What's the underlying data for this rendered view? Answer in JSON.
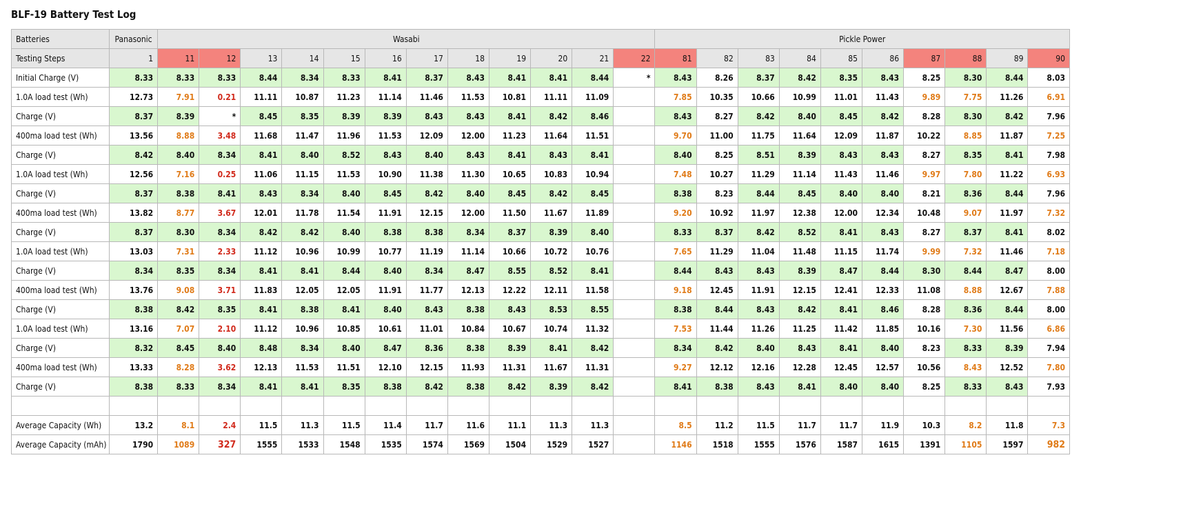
{
  "title": "BLF-19 Battery Test Log",
  "table": {
    "group_header": {
      "label": "Batteries",
      "groups": [
        {
          "name": "Panasonic",
          "span": 1
        },
        {
          "name": "Wasabi",
          "span": 12
        },
        {
          "name": "Pickle Power",
          "span": 10
        }
      ]
    },
    "columns_label": "Testing Steps",
    "columns": [
      "1",
      "11",
      "12",
      "13",
      "14",
      "15",
      "16",
      "17",
      "18",
      "19",
      "20",
      "21",
      "22",
      "81",
      "82",
      "83",
      "84",
      "85",
      "86",
      "87",
      "88",
      "89",
      "90"
    ],
    "flagged": [
      false,
      true,
      true,
      false,
      false,
      false,
      false,
      false,
      false,
      false,
      false,
      false,
      true,
      true,
      false,
      false,
      false,
      false,
      false,
      true,
      true,
      false,
      true
    ],
    "flag_color": "#f4837d",
    "good_color": "#d9f7cf",
    "warn_color": "#e07b18",
    "bad_color": "#d12a1c",
    "rows": [
      {
        "kind": "charge",
        "label": "Initial Charge (V)",
        "values": [
          "8.33",
          "8.33",
          "8.33",
          "8.44",
          "8.34",
          "8.33",
          "8.41",
          "8.37",
          "8.43",
          "8.41",
          "8.41",
          "8.44",
          "*",
          "8.43",
          "8.26",
          "8.37",
          "8.42",
          "8.35",
          "8.43",
          "8.25",
          "8.30",
          "8.44",
          "8.03"
        ]
      },
      {
        "kind": "load",
        "label": "1.0A load test (Wh)",
        "values": [
          "12.73",
          "7.91",
          "0.21",
          "11.11",
          "10.87",
          "11.23",
          "11.14",
          "11.46",
          "11.53",
          "10.81",
          "11.11",
          "11.09",
          null,
          "7.85",
          "10.35",
          "10.66",
          "10.99",
          "11.01",
          "11.43",
          "9.89",
          "7.75",
          "11.26",
          "6.91"
        ]
      },
      {
        "kind": "charge",
        "label": "Charge (V)",
        "values": [
          "8.37",
          "8.39",
          "*",
          "8.45",
          "8.35",
          "8.39",
          "8.39",
          "8.43",
          "8.43",
          "8.41",
          "8.42",
          "8.46",
          null,
          "8.43",
          "8.27",
          "8.42",
          "8.40",
          "8.45",
          "8.42",
          "8.28",
          "8.30",
          "8.42",
          "7.96"
        ]
      },
      {
        "kind": "load",
        "label": "400ma load test (Wh)",
        "values": [
          "13.56",
          "8.88",
          "3.48",
          "11.68",
          "11.47",
          "11.96",
          "11.53",
          "12.09",
          "12.00",
          "11.23",
          "11.64",
          "11.51",
          null,
          "9.70",
          "11.00",
          "11.75",
          "11.64",
          "12.09",
          "11.87",
          "10.22",
          "8.85",
          "11.87",
          "7.25"
        ]
      },
      {
        "kind": "charge",
        "label": "Charge (V)",
        "values": [
          "8.42",
          "8.40",
          "8.34",
          "8.41",
          "8.40",
          "8.52",
          "8.43",
          "8.40",
          "8.43",
          "8.41",
          "8.43",
          "8.41",
          null,
          "8.40",
          "8.25",
          "8.51",
          "8.39",
          "8.43",
          "8.43",
          "8.27",
          "8.35",
          "8.41",
          "7.98"
        ]
      },
      {
        "kind": "load",
        "label": "1.0A load test (Wh)",
        "values": [
          "12.56",
          "7.16",
          "0.25",
          "11.06",
          "11.15",
          "11.53",
          "10.90",
          "11.38",
          "11.30",
          "10.65",
          "10.83",
          "10.94",
          null,
          "7.48",
          "10.27",
          "11.29",
          "11.14",
          "11.43",
          "11.46",
          "9.97",
          "7.80",
          "11.22",
          "6.93"
        ]
      },
      {
        "kind": "charge",
        "label": "Charge (V)",
        "values": [
          "8.37",
          "8.38",
          "8.41",
          "8.43",
          "8.34",
          "8.40",
          "8.45",
          "8.42",
          "8.40",
          "8.45",
          "8.42",
          "8.45",
          null,
          "8.38",
          "8.23",
          "8.44",
          "8.45",
          "8.40",
          "8.40",
          "8.21",
          "8.36",
          "8.44",
          "7.96"
        ]
      },
      {
        "kind": "load",
        "label": "400ma load test (Wh)",
        "values": [
          "13.82",
          "8.77",
          "3.67",
          "12.01",
          "11.78",
          "11.54",
          "11.91",
          "12.15",
          "12.00",
          "11.50",
          "11.67",
          "11.89",
          null,
          "9.20",
          "10.92",
          "11.97",
          "12.38",
          "12.00",
          "12.34",
          "10.48",
          "9.07",
          "11.97",
          "7.32"
        ]
      },
      {
        "kind": "charge",
        "label": "Charge (V)",
        "values": [
          "8.37",
          "8.30",
          "8.34",
          "8.42",
          "8.42",
          "8.40",
          "8.38",
          "8.38",
          "8.34",
          "8.37",
          "8.39",
          "8.40",
          null,
          "8.33",
          "8.37",
          "8.42",
          "8.52",
          "8.41",
          "8.43",
          "8.27",
          "8.37",
          "8.41",
          "8.02"
        ]
      },
      {
        "kind": "load",
        "label": "1.0A load test (Wh)",
        "values": [
          "13.03",
          "7.31",
          "2.33",
          "11.12",
          "10.96",
          "10.99",
          "10.77",
          "11.19",
          "11.14",
          "10.66",
          "10.72",
          "10.76",
          null,
          "7.65",
          "11.29",
          "11.04",
          "11.48",
          "11.15",
          "11.74",
          "9.99",
          "7.32",
          "11.46",
          "7.18"
        ]
      },
      {
        "kind": "charge",
        "label": "Charge (V)",
        "values": [
          "8.34",
          "8.35",
          "8.34",
          "8.41",
          "8.41",
          "8.44",
          "8.40",
          "8.34",
          "8.47",
          "8.55",
          "8.52",
          "8.41",
          null,
          "8.44",
          "8.43",
          "8.43",
          "8.39",
          "8.47",
          "8.44",
          "8.30",
          "8.44",
          "8.47",
          "8.00"
        ]
      },
      {
        "kind": "load",
        "label": "400ma load test (Wh)",
        "values": [
          "13.76",
          "9.08",
          "3.71",
          "11.83",
          "12.05",
          "12.05",
          "11.91",
          "11.77",
          "12.13",
          "12.22",
          "12.11",
          "11.58",
          null,
          "9.18",
          "12.45",
          "11.91",
          "12.15",
          "12.41",
          "12.33",
          "11.08",
          "8.88",
          "12.67",
          "7.88"
        ]
      },
      {
        "kind": "charge",
        "label": "Charge (V)",
        "values": [
          "8.38",
          "8.42",
          "8.35",
          "8.41",
          "8.38",
          "8.41",
          "8.40",
          "8.43",
          "8.38",
          "8.43",
          "8.53",
          "8.55",
          null,
          "8.38",
          "8.44",
          "8.43",
          "8.42",
          "8.41",
          "8.46",
          "8.28",
          "8.36",
          "8.44",
          "8.00"
        ]
      },
      {
        "kind": "load",
        "label": "1.0A load test (Wh)",
        "values": [
          "13.16",
          "7.07",
          "2.10",
          "11.12",
          "10.96",
          "10.85",
          "10.61",
          "11.01",
          "10.84",
          "10.67",
          "10.74",
          "11.32",
          null,
          "7.53",
          "11.44",
          "11.26",
          "11.25",
          "11.42",
          "11.85",
          "10.16",
          "7.30",
          "11.56",
          "6.86"
        ]
      },
      {
        "kind": "charge",
        "label": "Charge (V)",
        "values": [
          "8.32",
          "8.45",
          "8.40",
          "8.48",
          "8.34",
          "8.40",
          "8.47",
          "8.36",
          "8.38",
          "8.39",
          "8.41",
          "8.42",
          null,
          "8.34",
          "8.42",
          "8.40",
          "8.43",
          "8.41",
          "8.40",
          "8.23",
          "8.33",
          "8.39",
          "7.94"
        ]
      },
      {
        "kind": "load",
        "label": "400ma load test (Wh)",
        "values": [
          "13.33",
          "8.28",
          "3.62",
          "12.13",
          "11.53",
          "11.51",
          "12.10",
          "12.15",
          "11.93",
          "11.31",
          "11.67",
          "11.31",
          null,
          "9.27",
          "12.12",
          "12.16",
          "12.28",
          "12.45",
          "12.57",
          "10.56",
          "8.43",
          "12.52",
          "7.80"
        ]
      },
      {
        "kind": "charge",
        "label": "Charge (V)",
        "values": [
          "8.38",
          "8.33",
          "8.34",
          "8.41",
          "8.41",
          "8.35",
          "8.38",
          "8.42",
          "8.38",
          "8.42",
          "8.39",
          "8.42",
          null,
          "8.41",
          "8.38",
          "8.43",
          "8.41",
          "8.40",
          "8.40",
          "8.25",
          "8.33",
          "8.43",
          "7.93"
        ]
      },
      {
        "kind": "blank"
      },
      {
        "kind": "avg",
        "label": "Average Capacity (Wh)",
        "values": [
          "13.2",
          "8.1",
          "2.4",
          "11.5",
          "11.3",
          "11.5",
          "11.4",
          "11.7",
          "11.6",
          "11.1",
          "11.3",
          "11.3",
          null,
          "8.5",
          "11.2",
          "11.5",
          "11.7",
          "11.7",
          "11.9",
          "10.3",
          "8.2",
          "11.8",
          "7.3"
        ]
      },
      {
        "kind": "avg_mah",
        "label": "Average Capacity (mAh)",
        "values": [
          "1790",
          "1089",
          "327",
          "1555",
          "1533",
          "1548",
          "1535",
          "1574",
          "1569",
          "1504",
          "1529",
          "1527",
          null,
          "1146",
          "1518",
          "1555",
          "1576",
          "1587",
          "1615",
          "1391",
          "1105",
          "1597",
          "982"
        ]
      }
    ]
  }
}
